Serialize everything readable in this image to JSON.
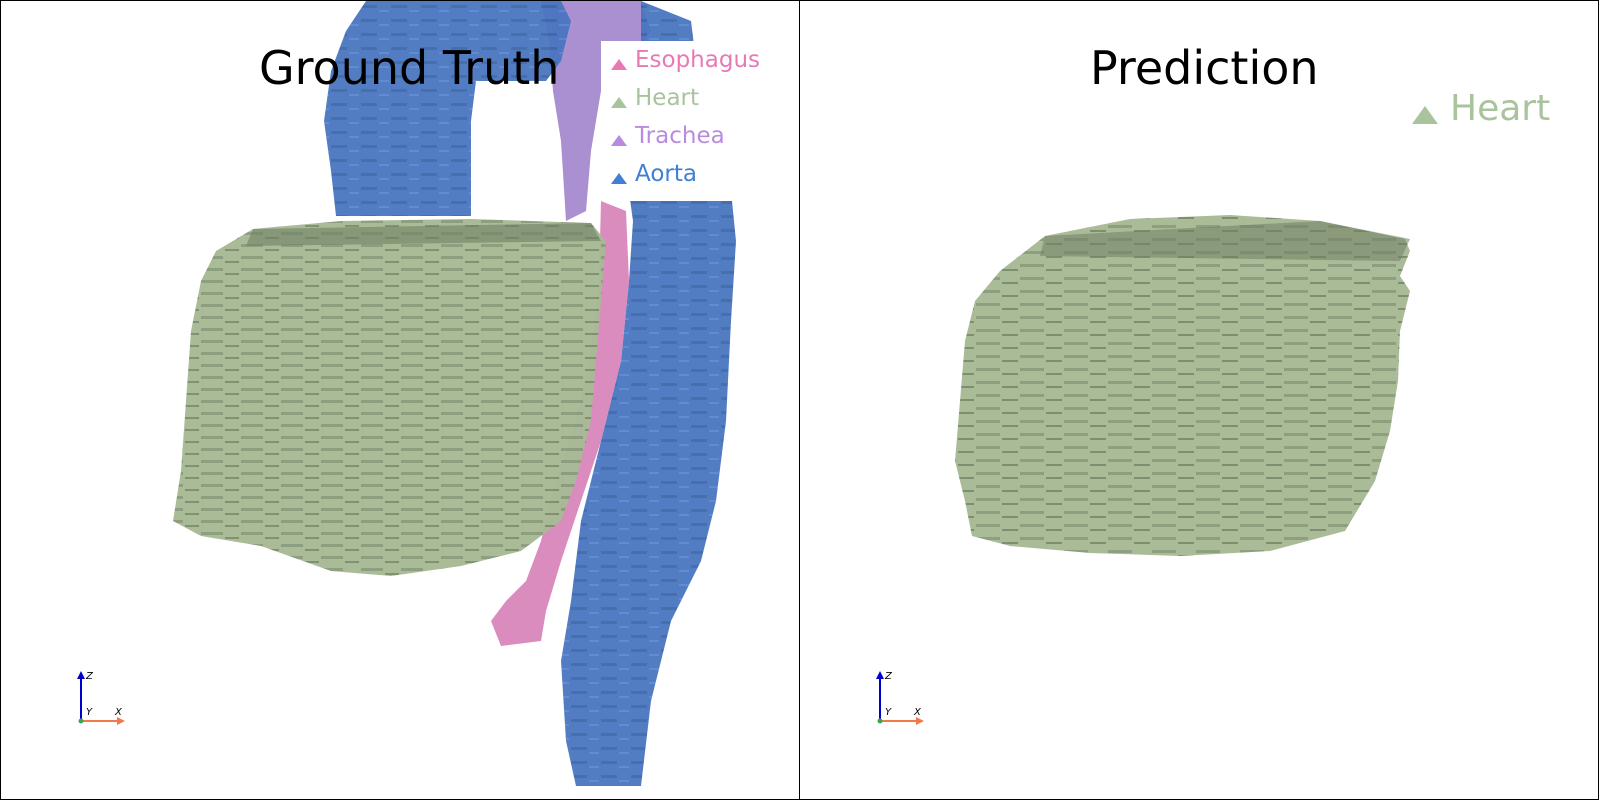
{
  "left_panel": {
    "title": "Ground Truth",
    "legend": [
      {
        "label": "Esophagus",
        "color": "#e879b5"
      },
      {
        "label": "Heart",
        "color": "#a9c39d"
      },
      {
        "label": "Trachea",
        "color": "#b88be0"
      },
      {
        "label": "Aorta",
        "color": "#3f7fd6"
      }
    ]
  },
  "right_panel": {
    "title": "Prediction",
    "legend": [
      {
        "label": "Heart",
        "color": "#a9c39d"
      }
    ]
  },
  "axes": {
    "x": "X",
    "y": "Y",
    "z": "Z"
  },
  "colors": {
    "heart_fill": "#a7b995",
    "heart_dark": "#6f8063",
    "aorta_fill": "#4a76c0",
    "trachea_fill": "#9b7dc8",
    "esophagus_fill": "#d67fb8"
  }
}
